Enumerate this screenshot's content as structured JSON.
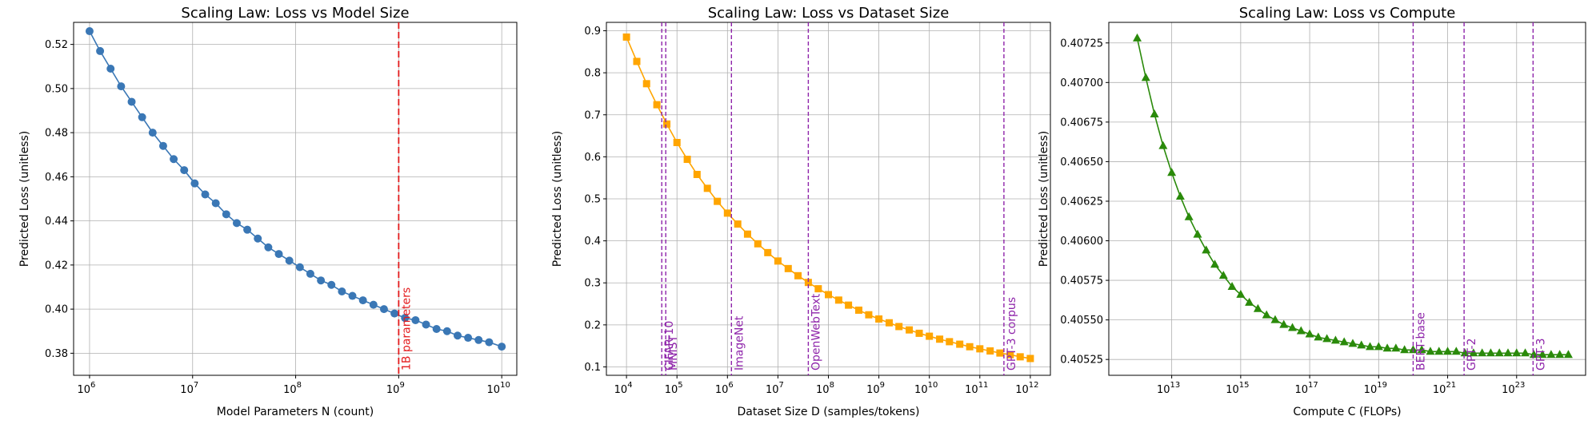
{
  "chart_data": [
    {
      "type": "line",
      "title": "Scaling Law: Loss vs Model Size",
      "xlabel": "Model Parameters N (count)",
      "ylabel": "Predicted Loss (unitless)",
      "xscale": "log",
      "xlim": [
        700000,
        14000000000
      ],
      "ylim": [
        0.37,
        0.53
      ],
      "xticks": [
        {
          "base": "10",
          "exp": "6",
          "value": 1000000.0
        },
        {
          "base": "10",
          "exp": "7",
          "value": 10000000.0
        },
        {
          "base": "10",
          "exp": "8",
          "value": 100000000.0
        },
        {
          "base": "10",
          "exp": "9",
          "value": 1000000000.0
        },
        {
          "base": "10",
          "exp": "10",
          "value": 10000000000.0
        }
      ],
      "yticks": [
        "0.38",
        "0.40",
        "0.42",
        "0.44",
        "0.46",
        "0.48",
        "0.50",
        "0.52"
      ],
      "grid": true,
      "series": [
        {
          "color": "#3a77b5",
          "marker": "circle",
          "x": [
            1000000.0,
            1265000.0,
            1600000.0,
            2024000.0,
            2560000.0,
            3237000.0,
            4095000.0,
            5179000.0,
            6551000.0,
            8286000.0,
            10480000.0,
            13260000.0,
            16770000.0,
            21210000.0,
            26830000.0,
            33930000.0,
            42920000.0,
            54290000.0,
            68660000.0,
            86850000.0,
            109900000.0,
            138900000.0,
            175800000.0,
            222300000.0,
            281200000.0,
            355600000.0,
            449800000.0,
            569000000.0,
            719700000.0,
            910300000.0,
            1151000000.0,
            1456000000.0,
            1842000000.0,
            2330000000.0,
            2947000000.0,
            3728000000.0,
            4715000000.0,
            5964000000.0,
            7543000000.0,
            10000000000.0
          ],
          "y": [
            0.526,
            0.517,
            0.509,
            0.501,
            0.494,
            0.487,
            0.48,
            0.474,
            0.468,
            0.463,
            0.457,
            0.452,
            0.448,
            0.443,
            0.439,
            0.436,
            0.432,
            0.428,
            0.425,
            0.422,
            0.419,
            0.416,
            0.413,
            0.411,
            0.408,
            0.406,
            0.404,
            0.402,
            0.4,
            0.398,
            0.396,
            0.395,
            0.393,
            0.391,
            0.39,
            0.388,
            0.387,
            0.386,
            0.385,
            0.383
          ]
        }
      ],
      "vlines": [
        {
          "x": 1000000000.0,
          "label": "1B parameters",
          "color": "#e31a1c",
          "style": "dashed"
        }
      ]
    },
    {
      "type": "line",
      "title": "Scaling Law: Loss vs Dataset Size",
      "xlabel": "Dataset Size D (samples/tokens)",
      "ylabel": "Predicted Loss (unitless)",
      "xscale": "log",
      "xlim": [
        4000,
        2500000000000.0
      ],
      "ylim": [
        0.08,
        0.92
      ],
      "xticks": [
        {
          "base": "10",
          "exp": "4",
          "value": 10000.0
        },
        {
          "base": "10",
          "exp": "5",
          "value": 100000.0
        },
        {
          "base": "10",
          "exp": "6",
          "value": 1000000.0
        },
        {
          "base": "10",
          "exp": "7",
          "value": 10000000.0
        },
        {
          "base": "10",
          "exp": "8",
          "value": 100000000.0
        },
        {
          "base": "10",
          "exp": "9",
          "value": 1000000000.0
        },
        {
          "base": "10",
          "exp": "10",
          "value": 10000000000.0
        },
        {
          "base": "10",
          "exp": "11",
          "value": 100000000000.0
        },
        {
          "base": "10",
          "exp": "12",
          "value": 1000000000000.0
        }
      ],
      "yticks": [
        "0.1",
        "0.2",
        "0.3",
        "0.4",
        "0.5",
        "0.6",
        "0.7",
        "0.8",
        "0.9"
      ],
      "grid": true,
      "series": [
        {
          "color": "#ffa500",
          "marker": "square",
          "x": [
            10000.0,
            16000.0,
            25000.0,
            40000.0,
            63000.0,
            100000.0,
            160000.0,
            250000.0,
            400000.0,
            630000.0,
            1000000.0,
            1600000.0,
            2500000.0,
            4000000.0,
            6300000.0,
            10000000.0,
            16000000.0,
            25000000.0,
            40000000.0,
            63000000.0,
            100000000.0,
            160000000.0,
            250000000.0,
            400000000.0,
            630000000.0,
            1000000000.0,
            1600000000.0,
            2500000000.0,
            4000000000.0,
            6300000000.0,
            10000000000.0,
            16000000000.0,
            25000000000.0,
            40000000000.0,
            63000000000.0,
            100000000000.0,
            160000000000.0,
            250000000000.0,
            400000000000.0,
            630000000000.0,
            1000000000000.0
          ],
          "y": [
            0.885,
            0.827,
            0.774,
            0.724,
            0.678,
            0.634,
            0.594,
            0.558,
            0.525,
            0.494,
            0.466,
            0.44,
            0.416,
            0.393,
            0.372,
            0.352,
            0.334,
            0.317,
            0.301,
            0.286,
            0.272,
            0.259,
            0.247,
            0.235,
            0.224,
            0.214,
            0.205,
            0.196,
            0.188,
            0.18,
            0.173,
            0.166,
            0.16,
            0.154,
            0.148,
            0.143,
            0.138,
            0.133,
            0.129,
            0.124,
            0.12
          ]
        }
      ],
      "vlines": [
        {
          "x": 50000.0,
          "label": "CIFAR-10",
          "color": "#8e24aa",
          "style": "dashed"
        },
        {
          "x": 60000.0,
          "label": "MNIST",
          "color": "#8e24aa",
          "style": "dashed"
        },
        {
          "x": 1200000.0,
          "label": "ImageNet",
          "color": "#8e24aa",
          "style": "dashed"
        },
        {
          "x": 40000000.0,
          "label": "OpenWebText",
          "color": "#8e24aa",
          "style": "dashed"
        },
        {
          "x": 300000000000.0,
          "label": "GPT-3 corpus",
          "color": "#8e24aa",
          "style": "dashed"
        }
      ]
    },
    {
      "type": "line",
      "title": "Scaling Law: Loss vs Compute",
      "xlabel": "Compute C (FLOPs)",
      "ylabel": "Predicted Loss (unitless)",
      "xscale": "log",
      "xlim": [
        150000000000.0,
        1e+25
      ],
      "ylim": [
        0.40515,
        0.40738
      ],
      "xticks": [
        {
          "base": "10",
          "exp": "13",
          "value": 10000000000000.0
        },
        {
          "base": "10",
          "exp": "15",
          "value": 1000000000000000.0
        },
        {
          "base": "10",
          "exp": "17",
          "value": 1e+17
        },
        {
          "base": "10",
          "exp": "19",
          "value": 1e+19
        },
        {
          "base": "10",
          "exp": "21",
          "value": 1e+21
        },
        {
          "base": "10",
          "exp": "23",
          "value": 1e+23
        }
      ],
      "yticks": [
        "0.40525",
        "0.40550",
        "0.40575",
        "0.40600",
        "0.40625",
        "0.40650",
        "0.40675",
        "0.40700",
        "0.40725"
      ],
      "grid": true,
      "series": [
        {
          "color": "#2a8a0a",
          "marker": "triangle",
          "x": [
            1000000000000.0,
            1778000000000.0,
            3162000000000.0,
            5623000000000.0,
            10000000000000.0,
            17780000000000.0,
            31620000000000.0,
            56230000000000.0,
            100000000000000.0,
            177800000000000.0,
            316200000000000.0,
            562300000000000.0,
            1000000000000000.0,
            1778000000000000.0,
            3162000000000000.0,
            5623000000000000.0,
            1e+16,
            1.778e+16,
            3.162e+16,
            5.623e+16,
            1e+17,
            1.778e+17,
            3.162e+17,
            5.623e+17,
            1e+18,
            1.778e+18,
            3.162e+18,
            5.623e+18,
            1e+19,
            1.778e+19,
            3.162e+19,
            5.623e+19,
            1e+20,
            1.778e+20,
            3.162e+20,
            5.623e+20,
            1e+21,
            1.778e+21,
            3.162e+21,
            5.623e+21,
            1e+22,
            1.778e+22,
            3.162e+22,
            5.623e+22,
            1e+23,
            1.778e+23,
            3.162e+23,
            5.623e+23,
            1e+24,
            1.778e+24,
            3.162e+24
          ],
          "y": [
            0.40728,
            0.40703,
            0.4068,
            0.4066,
            0.40643,
            0.40628,
            0.40615,
            0.40604,
            0.40594,
            0.40585,
            0.40578,
            0.40571,
            0.40566,
            0.40561,
            0.40557,
            0.40553,
            0.4055,
            0.40547,
            0.40545,
            0.40543,
            0.40541,
            0.40539,
            0.40538,
            0.40537,
            0.40536,
            0.40535,
            0.40534,
            0.40533,
            0.40533,
            0.40532,
            0.40532,
            0.40531,
            0.40531,
            0.40531,
            0.4053,
            0.4053,
            0.4053,
            0.4053,
            0.40529,
            0.40529,
            0.40529,
            0.40529,
            0.40529,
            0.40529,
            0.40529,
            0.40529,
            0.40528,
            0.40528,
            0.40528,
            0.40528,
            0.40528
          ]
        }
      ],
      "vlines": [
        {
          "x": 1e+20,
          "label": "BERT-base",
          "color": "#8e24aa",
          "style": "dashed"
        },
        {
          "x": 3e+21,
          "label": "GPT-2",
          "color": "#8e24aa",
          "style": "dashed"
        },
        {
          "x": 3e+23,
          "label": "GPT-3",
          "color": "#8e24aa",
          "style": "dashed"
        }
      ]
    }
  ]
}
